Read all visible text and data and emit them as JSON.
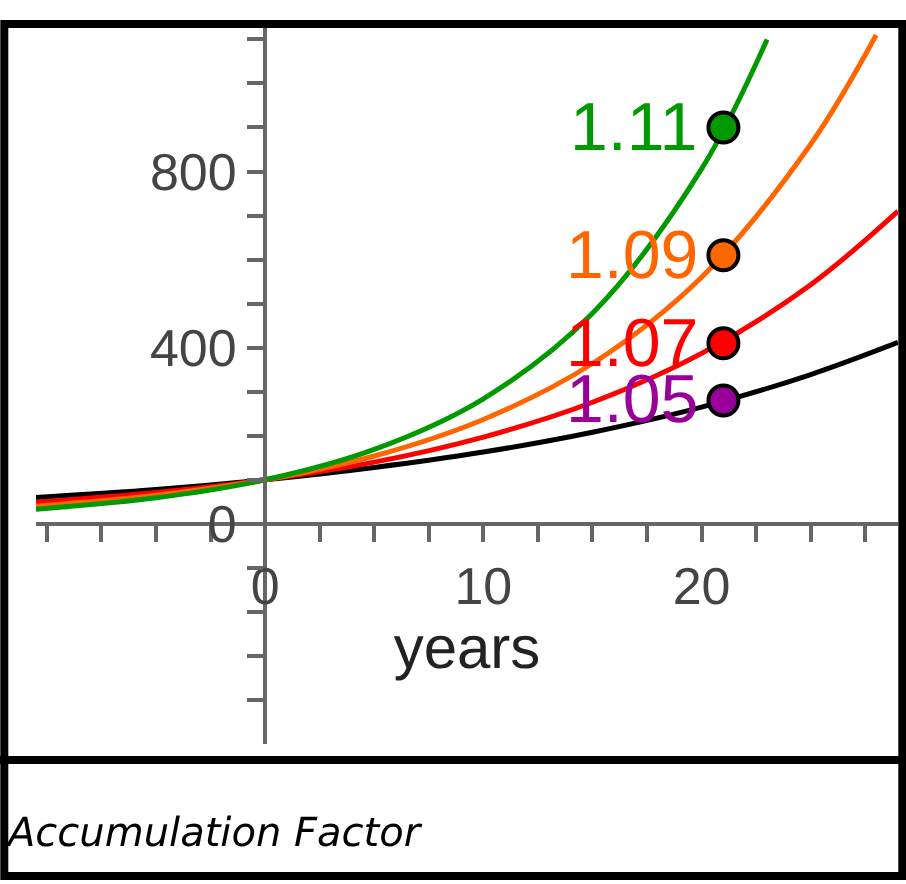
{
  "chart_data": {
    "type": "line",
    "xlabel": "years",
    "xlim": [
      -10.5,
      29
    ],
    "ylim": [
      -500,
      1135
    ],
    "xticks": [
      {
        "value": -10,
        "label": null
      },
      {
        "value": -7.5,
        "label": null
      },
      {
        "value": -5,
        "label": null
      },
      {
        "value": -2.5,
        "label": null
      },
      {
        "value": 2.5,
        "label": null
      },
      {
        "value": 5,
        "label": null
      },
      {
        "value": 7.5,
        "label": null
      },
      {
        "value": 10,
        "label": "10"
      },
      {
        "value": 12.5,
        "label": null
      },
      {
        "value": 15,
        "label": null
      },
      {
        "value": 17.5,
        "label": null
      },
      {
        "value": 20,
        "label": "20"
      },
      {
        "value": 22.5,
        "label": null
      },
      {
        "value": 25,
        "label": null
      },
      {
        "value": 27.5,
        "label": null
      },
      {
        "value": 0,
        "label": "0"
      }
    ],
    "yticks": [
      {
        "value": -400,
        "label": null
      },
      {
        "value": -300,
        "label": null
      },
      {
        "value": -200,
        "label": null
      },
      {
        "value": -100,
        "label": null
      },
      0,
      {
        "value": 100,
        "label": null
      },
      {
        "value": 200,
        "label": null
      },
      {
        "value": 300,
        "label": null
      },
      400,
      {
        "value": 500,
        "label": null
      },
      {
        "value": 600,
        "label": null
      },
      {
        "value": 700,
        "label": null
      },
      800,
      {
        "value": 900,
        "label": null
      },
      {
        "value": 1000,
        "label": null
      },
      {
        "value": 1100,
        "label": null
      }
    ],
    "legend": false,
    "marker": "none",
    "line_style": "solid",
    "series": [
      {
        "color": "#000000",
        "x": [
          -10.5,
          -5,
          0,
          5,
          10,
          15,
          20,
          25,
          29
        ],
        "values": [
          60,
          78,
          100,
          128,
          163,
          208,
          265,
          339,
          412
        ]
      },
      {
        "color": "#ff0000",
        "x": [
          -10.5,
          -5,
          0,
          5,
          10,
          15,
          20,
          25,
          29
        ],
        "values": [
          49,
          71,
          100,
          140,
          197,
          276,
          387,
          543,
          710
        ]
      },
      {
        "color": "#ff6600",
        "x": [
          -10.5,
          -5,
          0,
          5,
          10,
          15,
          20,
          25,
          28
        ],
        "values": [
          40,
          65,
          100,
          154,
          237,
          364,
          560,
          862,
          1110
        ]
      },
      {
        "color": "#009900",
        "x": [
          -10.5,
          -5,
          0,
          5,
          10,
          15,
          20,
          23
        ],
        "values": [
          33,
          59,
          100,
          169,
          284,
          478,
          806,
          1100
        ]
      },
      {
        "type": "scatter",
        "marker": "circle",
        "name": "1.11",
        "color": "#009900",
        "x": [
          21
        ],
        "values": [
          900
        ]
      },
      {
        "type": "scatter",
        "marker": "circle",
        "name": "1.09",
        "color": "#ff6600",
        "x": [
          21
        ],
        "values": [
          610
        ]
      },
      {
        "type": "scatter",
        "marker": "circle",
        "name": "1.07",
        "color": "#ff0000",
        "x": [
          21
        ],
        "values": [
          410
        ]
      },
      {
        "type": "scatter",
        "marker": "circle",
        "name": "1.05",
        "color": "#990099",
        "x": [
          21
        ],
        "values": [
          280
        ]
      }
    ],
    "annotations": [
      "Accumulation Factor"
    ]
  }
}
